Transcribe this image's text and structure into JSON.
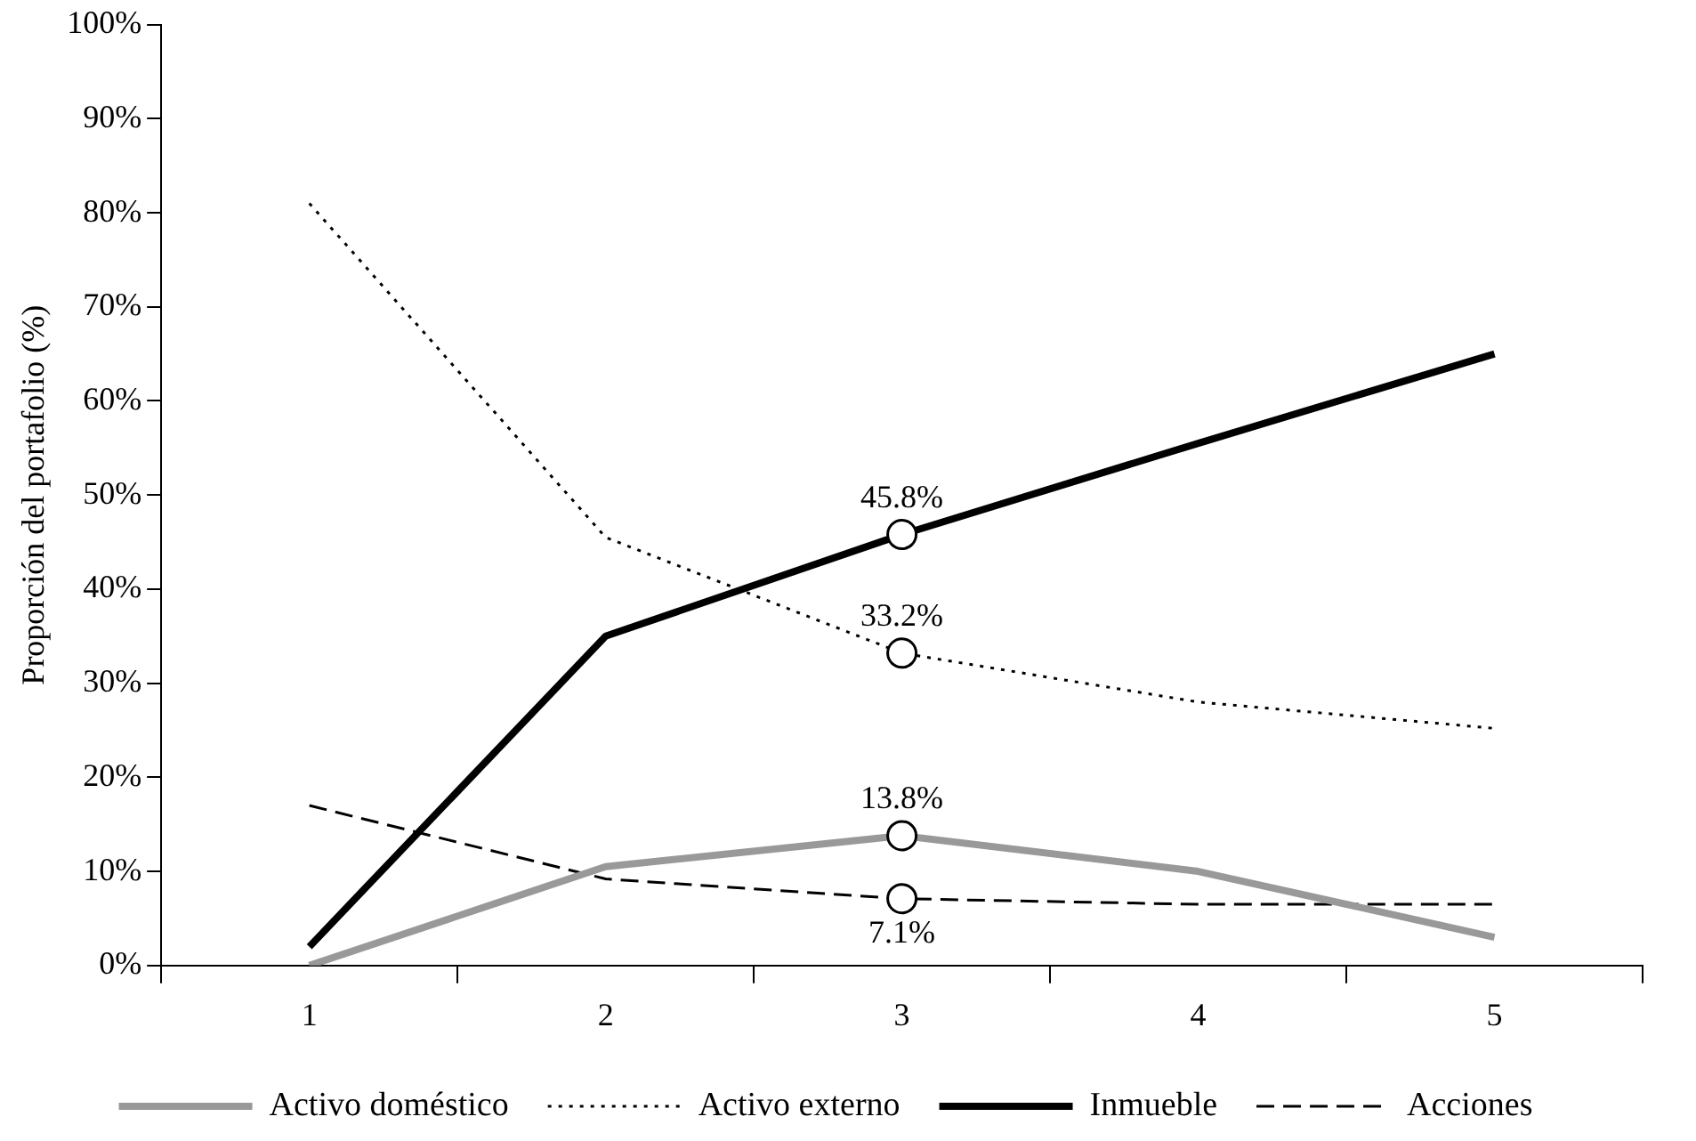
{
  "chart_data": {
    "type": "line",
    "ylabel": "Proporción del portafolio (%)",
    "categories": [
      "1",
      "2",
      "3",
      "4",
      "5"
    ],
    "series": [
      {
        "name": "Activo doméstico",
        "color": "#999999",
        "line_style": "solid",
        "values": [
          0,
          10.5,
          13.8,
          10,
          3
        ],
        "value_labels": [
          null,
          null,
          "13.8%",
          null,
          null
        ]
      },
      {
        "name": "Activo externo",
        "color": "#000000",
        "line_style": "dotted",
        "values": [
          81,
          45.5,
          33.2,
          28,
          25.2
        ],
        "value_labels": [
          null,
          null,
          "33.2%",
          null,
          null
        ]
      },
      {
        "name": "Inmueble",
        "color": "#000000",
        "line_style": "solid",
        "values": [
          2,
          35,
          45.8,
          55.5,
          65
        ],
        "value_labels": [
          null,
          null,
          "45.8%",
          null,
          null
        ]
      },
      {
        "name": "Acciones",
        "color": "#000000",
        "line_style": "dashed",
        "values": [
          17,
          9.2,
          7.1,
          6.5,
          6.5
        ],
        "value_labels": [
          null,
          null,
          "7.1%",
          null,
          null
        ]
      }
    ],
    "ylim": [
      0,
      100
    ],
    "yticks": [
      {
        "value": 0,
        "label": "0%"
      },
      {
        "value": 10,
        "label": "10%"
      },
      {
        "value": 20,
        "label": "20%"
      },
      {
        "value": 30,
        "label": "30%"
      },
      {
        "value": 40,
        "label": "40%"
      },
      {
        "value": 50,
        "label": "50%"
      },
      {
        "value": 60,
        "label": "60%"
      },
      {
        "value": 70,
        "label": "70%"
      },
      {
        "value": 80,
        "label": "80%"
      },
      {
        "value": 90,
        "label": "90%"
      },
      {
        "value": 100,
        "label": "100%"
      }
    ],
    "grid": false,
    "legend": "bottom",
    "marker": "none"
  }
}
